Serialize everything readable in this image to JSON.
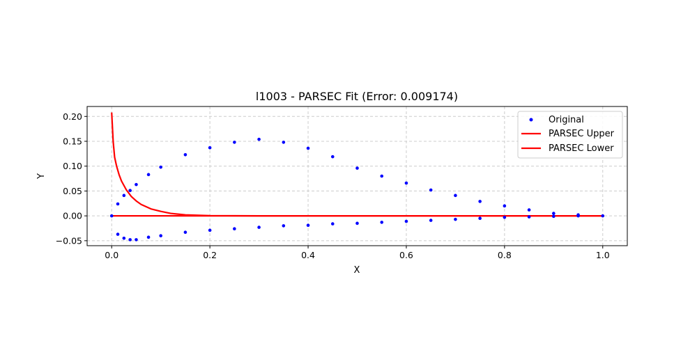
{
  "chart_data": {
    "type": "scatter",
    "title": "l1003 - PARSEC Fit (Error: 0.009174)",
    "xlabel": "X",
    "ylabel": "Y",
    "xlim": [
      -0.05,
      1.05
    ],
    "ylim": [
      -0.06,
      0.22
    ],
    "xticks": [
      0.0,
      0.2,
      0.4,
      0.6,
      0.8,
      1.0
    ],
    "xtick_labels": [
      "0.0",
      "0.2",
      "0.4",
      "0.6",
      "0.8",
      "1.0"
    ],
    "yticks": [
      -0.05,
      0.0,
      0.05,
      0.1,
      0.15,
      0.2
    ],
    "ytick_labels": [
      "−0.05",
      "0.00",
      "0.05",
      "0.10",
      "0.15",
      "0.20"
    ],
    "grid": true,
    "legend_position": "top-right",
    "colors": {
      "original": "#0000ff",
      "parsec": "#ff0000",
      "grid": "#cccccc"
    },
    "series": [
      {
        "name": "Original",
        "kind": "scatter",
        "points": [
          [
            0.0,
            0.0
          ],
          [
            0.0125,
            0.024
          ],
          [
            0.025,
            0.041
          ],
          [
            0.0375,
            0.051
          ],
          [
            0.05,
            0.063
          ],
          [
            0.075,
            0.083
          ],
          [
            0.1,
            0.098
          ],
          [
            0.15,
            0.123
          ],
          [
            0.2,
            0.137
          ],
          [
            0.25,
            0.148
          ],
          [
            0.3,
            0.154
          ],
          [
            0.35,
            0.148
          ],
          [
            0.4,
            0.136
          ],
          [
            0.45,
            0.119
          ],
          [
            0.5,
            0.096
          ],
          [
            0.55,
            0.08
          ],
          [
            0.6,
            0.066
          ],
          [
            0.65,
            0.052
          ],
          [
            0.7,
            0.041
          ],
          [
            0.75,
            0.029
          ],
          [
            0.8,
            0.02
          ],
          [
            0.85,
            0.012
          ],
          [
            0.9,
            0.005
          ],
          [
            0.95,
            0.002
          ],
          [
            1.0,
            0.0
          ],
          [
            0.0125,
            -0.037
          ],
          [
            0.025,
            -0.045
          ],
          [
            0.0375,
            -0.048
          ],
          [
            0.05,
            -0.048
          ],
          [
            0.075,
            -0.043
          ],
          [
            0.1,
            -0.04
          ],
          [
            0.15,
            -0.033
          ],
          [
            0.2,
            -0.029
          ],
          [
            0.25,
            -0.026
          ],
          [
            0.3,
            -0.023
          ],
          [
            0.35,
            -0.02
          ],
          [
            0.4,
            -0.019
          ],
          [
            0.45,
            -0.016
          ],
          [
            0.5,
            -0.015
          ],
          [
            0.55,
            -0.013
          ],
          [
            0.6,
            -0.011
          ],
          [
            0.65,
            -0.009
          ],
          [
            0.7,
            -0.007
          ],
          [
            0.75,
            -0.005
          ],
          [
            0.8,
            -0.003
          ],
          [
            0.85,
            -0.002
          ],
          [
            0.9,
            -0.001
          ],
          [
            0.95,
            0.0
          ]
        ]
      },
      {
        "name": "PARSEC Upper",
        "kind": "line",
        "points": [
          [
            0.0,
            0.208
          ],
          [
            0.003,
            0.15
          ],
          [
            0.006,
            0.118
          ],
          [
            0.01,
            0.1
          ],
          [
            0.015,
            0.083
          ],
          [
            0.02,
            0.07
          ],
          [
            0.03,
            0.052
          ],
          [
            0.04,
            0.039
          ],
          [
            0.05,
            0.03
          ],
          [
            0.06,
            0.023
          ],
          [
            0.08,
            0.014
          ],
          [
            0.1,
            0.009
          ],
          [
            0.12,
            0.005
          ],
          [
            0.15,
            0.002
          ],
          [
            0.2,
            0.0005
          ],
          [
            0.3,
            0.0
          ],
          [
            0.5,
            0.0
          ],
          [
            0.8,
            0.0
          ],
          [
            1.0,
            0.0
          ]
        ]
      },
      {
        "name": "PARSEC Lower",
        "kind": "line",
        "points": [
          [
            0.0,
            0.0
          ],
          [
            0.2,
            0.0
          ],
          [
            0.5,
            0.0
          ],
          [
            0.8,
            0.0
          ],
          [
            1.0,
            0.0
          ]
        ]
      }
    ]
  }
}
